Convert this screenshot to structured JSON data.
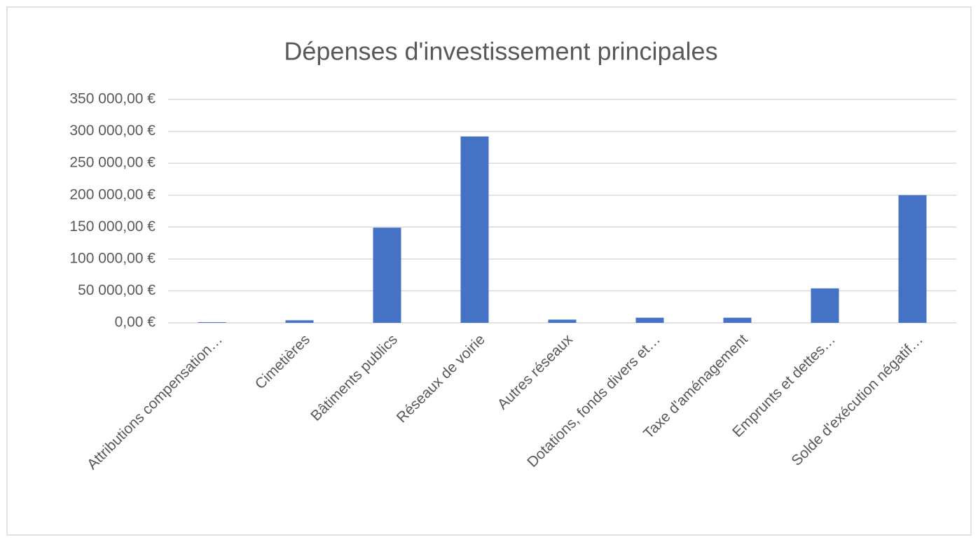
{
  "chart_data": {
    "type": "bar",
    "title": "Dépenses d'investissement principales",
    "categories": [
      "Attributions compensation…",
      "Cimetières",
      "Bâtiments publics",
      "Réseaux de voirie",
      "Autres réseaux",
      "Dotations, fonds divers et…",
      "Taxe d'aménagement",
      "Emprunts et dettes…",
      "Solde d'exécution négatif…"
    ],
    "values": [
      1000,
      4000,
      149000,
      292000,
      5000,
      8000,
      8000,
      54000,
      200000
    ],
    "color": "#4472c4",
    "ylim": [
      0,
      350000
    ],
    "yticks": [
      {
        "value": 0,
        "label": "0,00 €"
      },
      {
        "value": 50000,
        "label": "50 000,00 €"
      },
      {
        "value": 100000,
        "label": "100 000,00 €"
      },
      {
        "value": 150000,
        "label": "150 000,00 €"
      },
      {
        "value": 200000,
        "label": "200 000,00 €"
      },
      {
        "value": 250000,
        "label": "250 000,00 €"
      },
      {
        "value": 300000,
        "label": "300 000,00 €"
      },
      {
        "value": 350000,
        "label": "350 000,00 €"
      }
    ],
    "grid": true
  }
}
